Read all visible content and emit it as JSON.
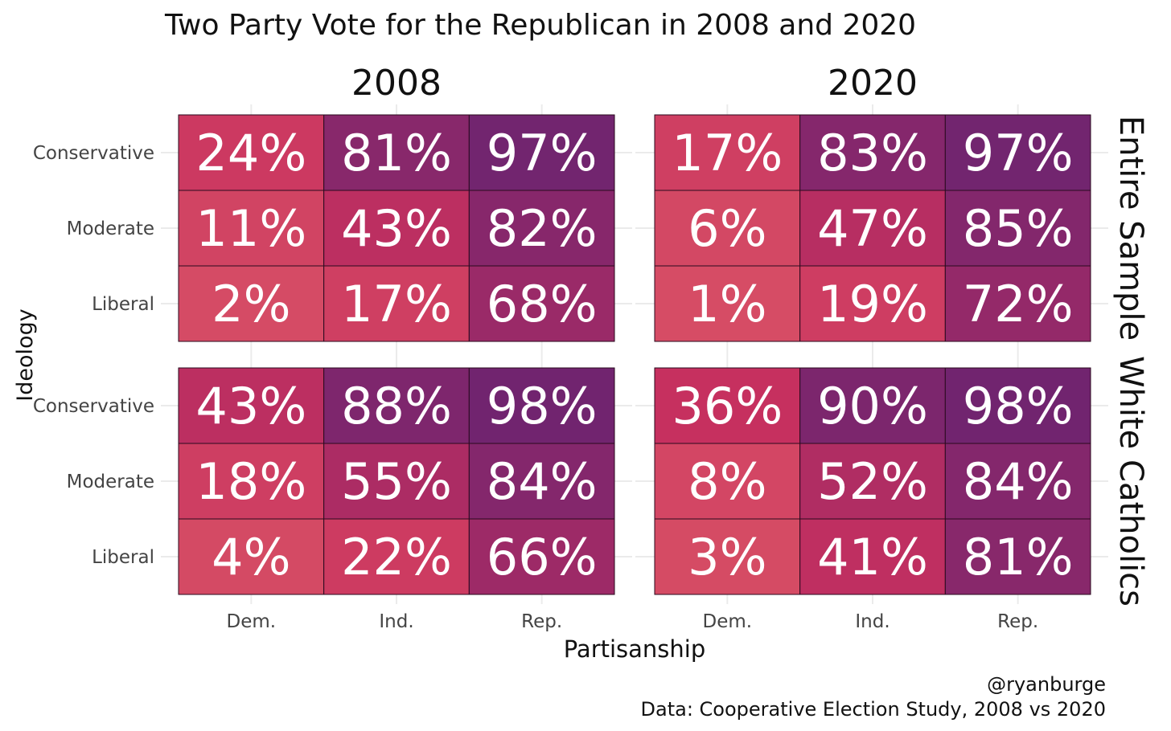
{
  "chart_data": {
    "type": "heatmap",
    "title": "Two Party Vote for the Republican in 2008 and 2020",
    "xlabel": "Partisanship",
    "ylabel": "Ideology",
    "x_categories": [
      "Dem.",
      "Ind.",
      "Rep."
    ],
    "y_categories": [
      "Conservative",
      "Moderate",
      "Liberal"
    ],
    "column_facets": [
      "2008",
      "2020"
    ],
    "row_facets": [
      "Entire Sample",
      "White Catholics"
    ],
    "value_unit": "%",
    "panels": [
      {
        "column_facet": "2008",
        "row_facet": "Entire Sample",
        "values": [
          [
            24,
            81,
            97
          ],
          [
            11,
            43,
            82
          ],
          [
            2,
            17,
            68
          ]
        ]
      },
      {
        "column_facet": "2020",
        "row_facet": "Entire Sample",
        "values": [
          [
            17,
            83,
            97
          ],
          [
            6,
            47,
            85
          ],
          [
            1,
            19,
            72
          ]
        ]
      },
      {
        "column_facet": "2008",
        "row_facet": "White Catholics",
        "values": [
          [
            43,
            88,
            98
          ],
          [
            18,
            55,
            84
          ],
          [
            4,
            22,
            66
          ]
        ]
      },
      {
        "column_facet": "2020",
        "row_facet": "White Catholics",
        "values": [
          [
            36,
            90,
            98
          ],
          [
            8,
            52,
            84
          ],
          [
            3,
            41,
            81
          ]
        ]
      }
    ],
    "color_scale": {
      "low": "#d64d65",
      "mid": "#c7305f",
      "high": "#6e2470"
    },
    "grid": true,
    "legend": "none"
  },
  "caption": {
    "author": "@ryanburge",
    "source": "Data: Cooperative Election Study, 2008 vs 2020"
  }
}
